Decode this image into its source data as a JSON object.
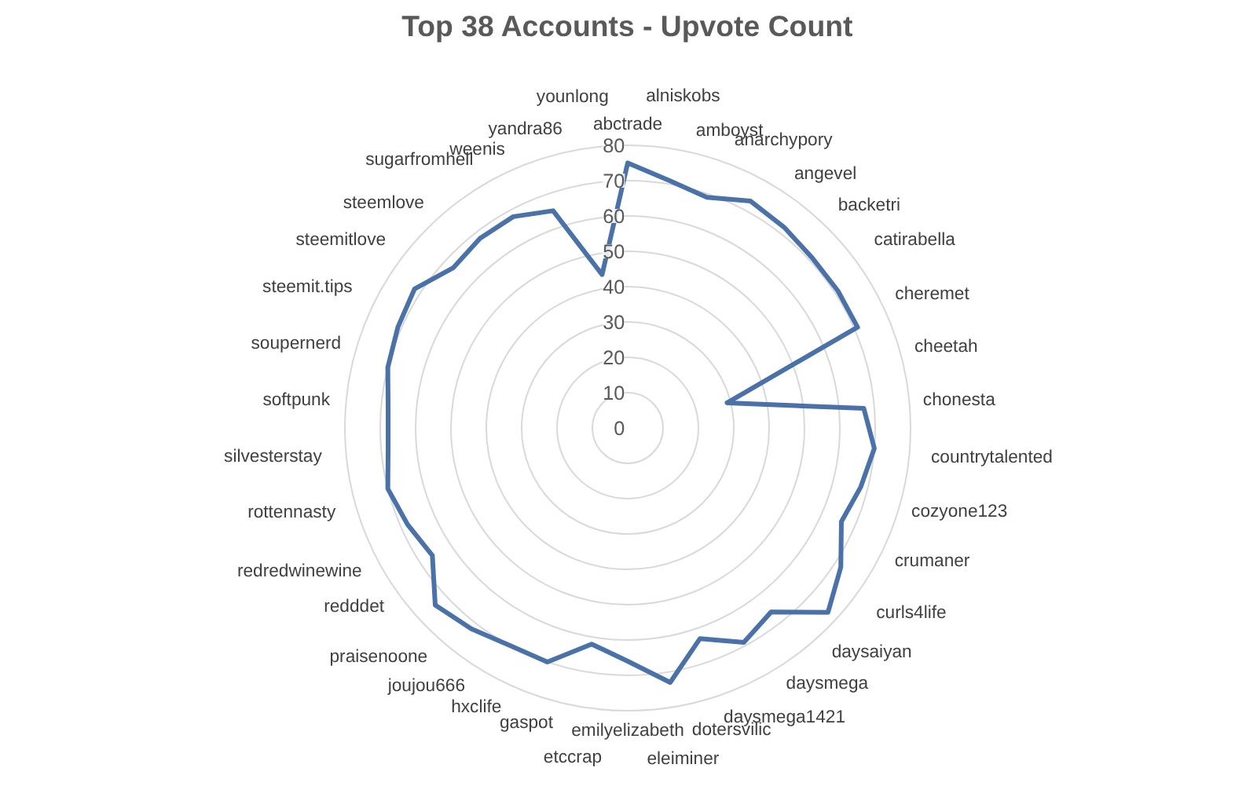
{
  "chart_data": {
    "type": "radar",
    "title": "Top 38 Accounts - Upvote Count",
    "categories": [
      "abctrade",
      "alniskobs",
      "amboyst",
      "anarchypory",
      "angevel",
      "backetri",
      "catirabella",
      "cheremet",
      "cheetah",
      "chonesta",
      "countrytalented",
      "cozyone123",
      "crumaner",
      "curls4life",
      "daysaiyan",
      "daysmega",
      "daysmega1421",
      "dotersvilic",
      "eleiminer",
      "emilyelizabeth",
      "etccrap",
      "gaspot",
      "hxclife",
      "joujou666",
      "praisenoone",
      "redddet",
      "redredwinewine",
      "rottennasty",
      "silvesterstay",
      "softpunk",
      "soupernerd",
      "steemit.tips",
      "steemitlove",
      "steemlove",
      "sugarfromhell",
      "weenis",
      "yandra86",
      "younlong"
    ],
    "series": [
      {
        "color": "#4a72a8",
        "values": [
          75,
          71,
          69,
          73,
          72,
          71,
          71,
          71,
          29,
          67,
          70,
          68,
          66,
          72,
          77,
          66,
          69,
          63,
          73,
          66,
          62,
          70,
          70,
          72,
          74,
          66,
          68,
          70,
          68,
          68,
          70,
          71,
          72,
          67,
          68,
          68,
          65,
          44
        ]
      }
    ],
    "ylim": [
      0,
      80
    ],
    "yticks": [
      0,
      10,
      20,
      30,
      40,
      50,
      60,
      70,
      80
    ],
    "grid": true
  }
}
